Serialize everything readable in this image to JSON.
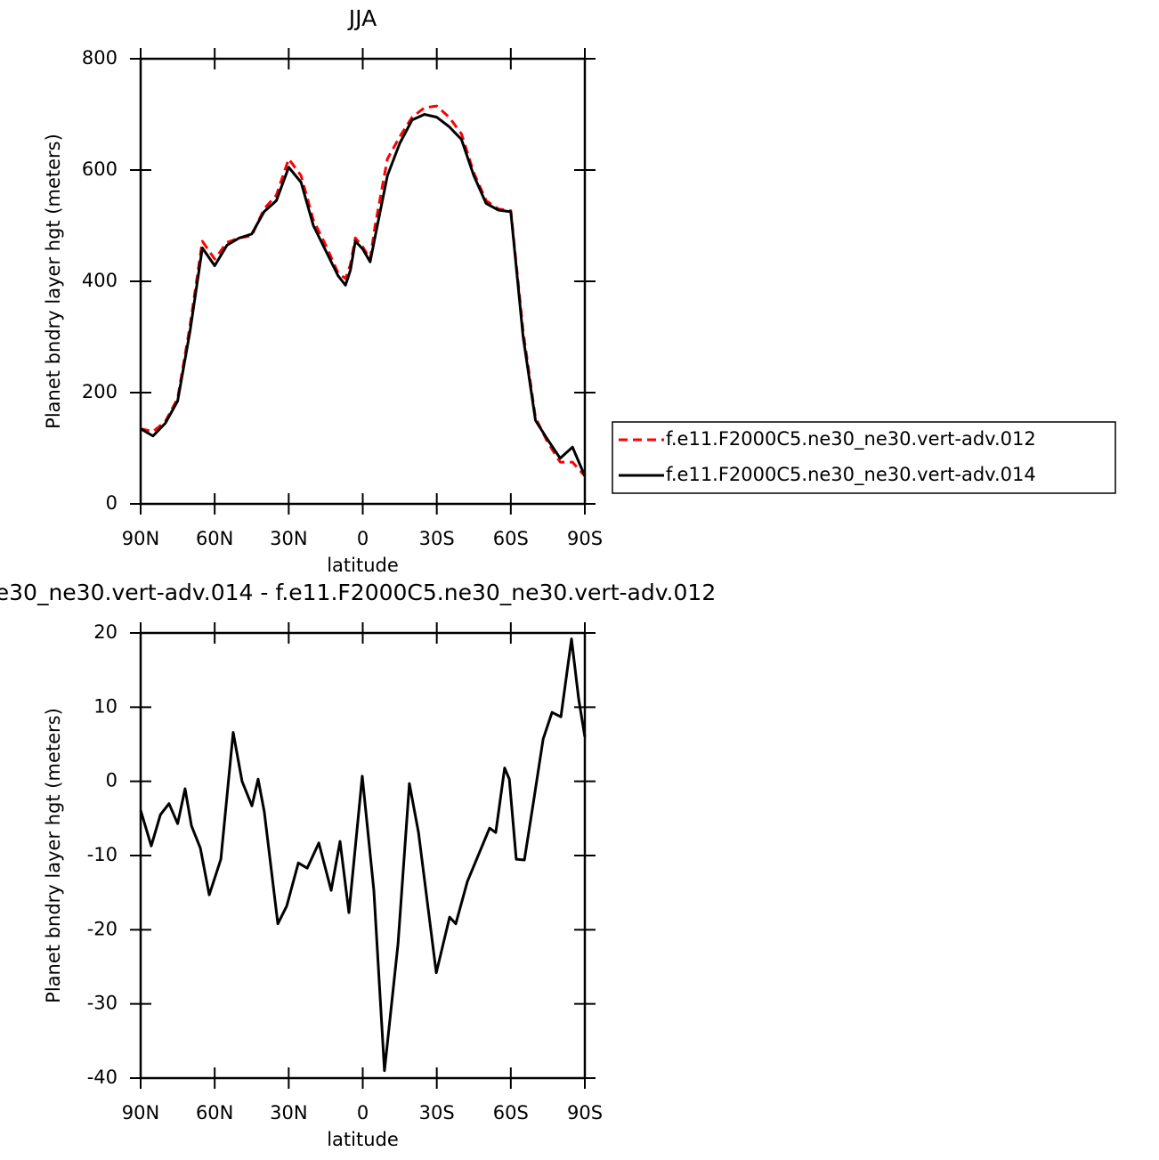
{
  "chart_data": [
    {
      "type": "line",
      "title": "JJA",
      "xlabel": "latitude",
      "ylabel": "Planet bndry layer hgt (meters)",
      "x": [
        90,
        85,
        80,
        75,
        70,
        65,
        60,
        55,
        50,
        45,
        40,
        35,
        30,
        25,
        20,
        15,
        10,
        7,
        5,
        3,
        0,
        -3,
        -5,
        -10,
        -15,
        -20,
        -25,
        -30,
        -35,
        -40,
        -45,
        -50,
        -55,
        -60,
        -65,
        -70,
        -75,
        -80,
        -85,
        -90
      ],
      "series": [
        {
          "name": "f.e11.F2000C5.ne30_ne30.vert-adv.012",
          "color": "#ff0000",
          "linestyle": "dashed",
          "values": [
            135,
            130,
            148,
            190,
            320,
            472,
            440,
            470,
            478,
            482,
            530,
            555,
            620,
            590,
            510,
            465,
            415,
            405,
            430,
            478,
            462,
            440,
            500,
            620,
            660,
            695,
            712,
            715,
            695,
            665,
            595,
            545,
            530,
            527,
            310,
            155,
            110,
            75,
            75,
            50
          ]
        },
        {
          "name": "f.e11.F2000C5.ne30_ne30.vert-adv.014",
          "color": "#000000",
          "linestyle": "solid",
          "values": [
            135,
            122,
            145,
            185,
            310,
            460,
            428,
            465,
            478,
            485,
            525,
            545,
            605,
            578,
            500,
            455,
            410,
            393,
            420,
            472,
            458,
            435,
            480,
            590,
            648,
            690,
            700,
            695,
            678,
            655,
            590,
            540,
            528,
            525,
            300,
            150,
            115,
            82,
            102,
            50
          ]
        }
      ],
      "xlim": [
        90,
        -90
      ],
      "xticks": [
        {
          "value": 90,
          "label": "90N"
        },
        {
          "value": 60,
          "label": "60N"
        },
        {
          "value": 30,
          "label": "30N"
        },
        0,
        {
          "value": -30,
          "label": "30S"
        },
        {
          "value": -60,
          "label": "60S"
        },
        {
          "value": -90,
          "label": "90S"
        }
      ],
      "ylim": [
        0,
        800
      ],
      "yticks": [
        0,
        200,
        400,
        600,
        800
      ],
      "legend": "right",
      "grid": false
    },
    {
      "type": "line",
      "title": "e30_ne30.vert-adv.014 - f.e11.F2000C5.ne30_ne30.vert-adv.012",
      "xlabel": "latitude",
      "ylabel": "Planet bndry layer hgt (meters)",
      "x": [
        90,
        85.7,
        82,
        78.5,
        75,
        72,
        69.4,
        65.8,
        62.2,
        57.5,
        52.5,
        48.9,
        44.9,
        42.4,
        39.9,
        34.4,
        30.8,
        26.1,
        22.5,
        17.8,
        12.8,
        9.2,
        5.6,
        0.2,
        -4.5,
        -8.8,
        -14.3,
        -18.9,
        -22.6,
        -29.8,
        -35.2,
        -37.7,
        -42.4,
        -51.4,
        -53.9,
        -57.5,
        -59.4,
        -62.2,
        -65.5,
        -69.5,
        -73.1,
        -76.7,
        -80.3,
        -84.6,
        -87.5,
        -90
      ],
      "values": [
        -3.9,
        -8.7,
        -4.5,
        -3,
        -5.7,
        -1,
        -6,
        -9,
        -15.3,
        -10.5,
        6.6,
        0,
        -3.3,
        0.3,
        -4.1,
        -19.2,
        -16.8,
        -11,
        -11.7,
        -8.3,
        -14.7,
        -8.1,
        -17.7,
        0.7,
        -14.7,
        -39,
        -21.9,
        -0.3,
        -6.9,
        -25.8,
        -18.3,
        -19.2,
        -13.5,
        -6.3,
        -6.9,
        1.8,
        0.3,
        -10.5,
        -10.6,
        -2.1,
        5.7,
        9.3,
        8.7,
        19.2,
        11.1,
        6
      ],
      "color": "#000000",
      "xlim": [
        90,
        -90
      ],
      "xticks": [
        {
          "value": 90,
          "label": "90N"
        },
        {
          "value": 60,
          "label": "60N"
        },
        {
          "value": 30,
          "label": "30N"
        },
        0,
        {
          "value": -30,
          "label": "30S"
        },
        {
          "value": -60,
          "label": "60S"
        },
        {
          "value": -90,
          "label": "90S"
        }
      ],
      "ylim": [
        -40,
        20
      ],
      "yticks": [
        -40,
        -30,
        -20,
        -10,
        0,
        10,
        20
      ],
      "grid": false
    }
  ]
}
